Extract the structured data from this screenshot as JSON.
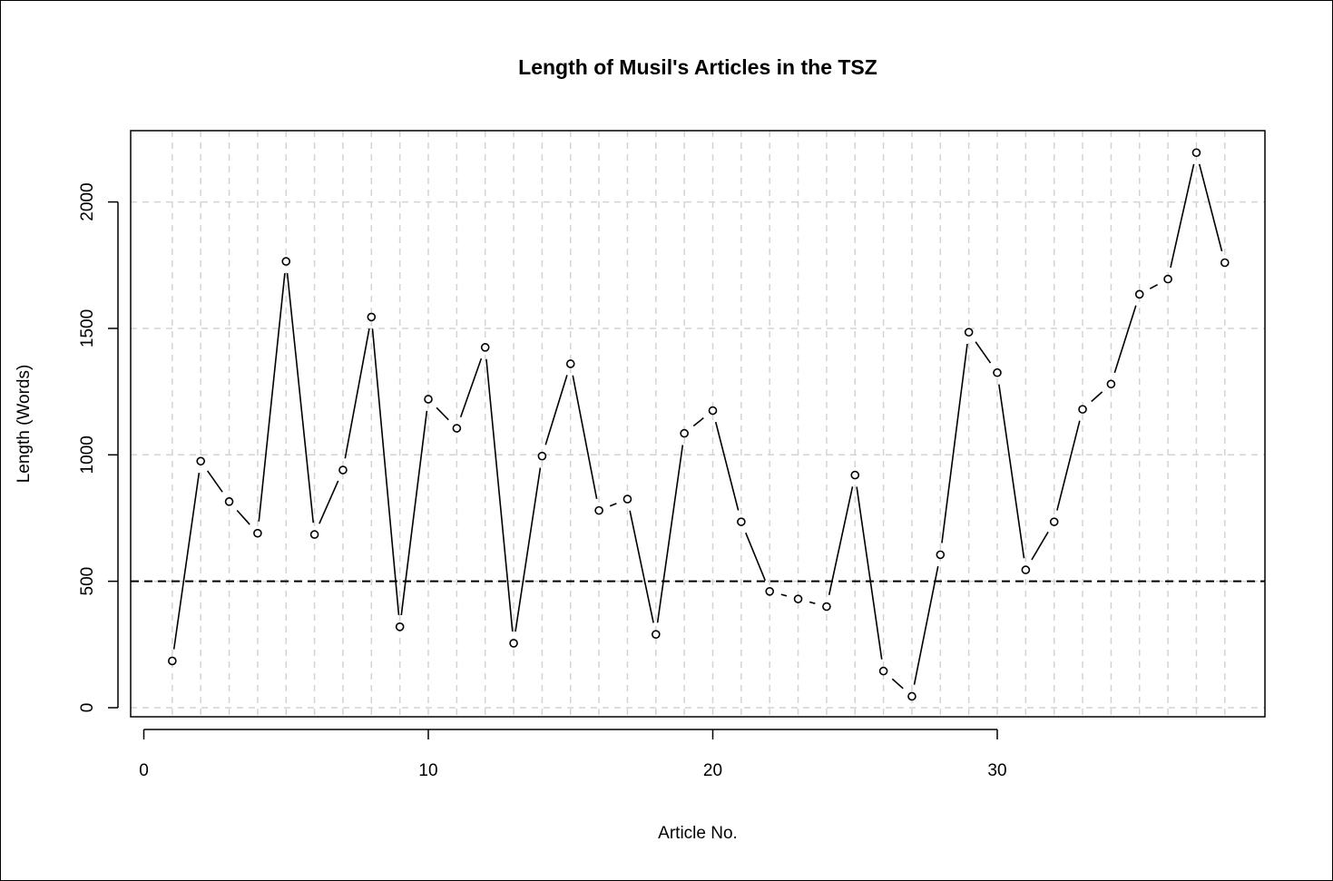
{
  "chart_data": {
    "type": "line",
    "title": "Length of Musil's Articles in the TSZ",
    "xlabel": "Article No.",
    "ylabel": "Length (Words)",
    "xlim": [
      0,
      39
    ],
    "ylim": [
      0,
      2200
    ],
    "x_ticks": [
      0,
      10,
      20,
      30
    ],
    "y_ticks": [
      0,
      500,
      1000,
      1500,
      2000
    ],
    "grid": true,
    "reference_line": {
      "y": 500,
      "style": "dashed"
    },
    "x": [
      1,
      2,
      3,
      4,
      5,
      6,
      7,
      8,
      9,
      10,
      11,
      12,
      13,
      14,
      15,
      16,
      17,
      18,
      19,
      20,
      21,
      22,
      23,
      24,
      25,
      26,
      27,
      28,
      29,
      30,
      31,
      32,
      33,
      34,
      35,
      36,
      37,
      38
    ],
    "y": [
      185,
      975,
      815,
      690,
      1765,
      685,
      940,
      1545,
      320,
      1220,
      1105,
      1425,
      255,
      995,
      1360,
      780,
      825,
      290,
      1085,
      1175,
      735,
      460,
      430,
      400,
      920,
      145,
      45,
      605,
      1485,
      1325,
      545,
      735,
      1180,
      1280,
      1635,
      1695,
      2195,
      1760
    ],
    "series_style": "b",
    "colors": {
      "line": "#000000",
      "grid": "#d3d3d3"
    }
  }
}
